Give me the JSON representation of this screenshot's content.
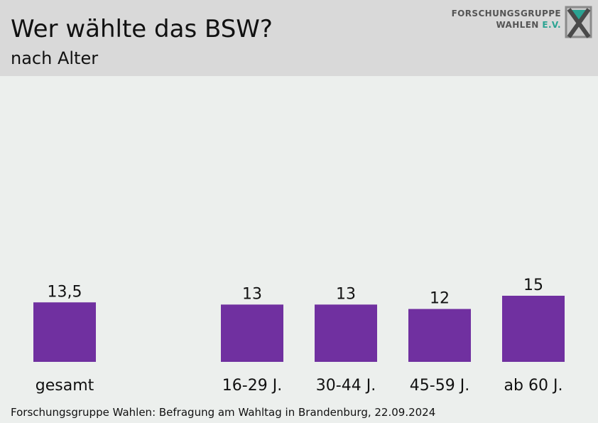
{
  "header": {
    "title": "Wer wählte das BSW?",
    "subtitle": "nach Alter",
    "logo_line1": "FORSCHUNGSGRUPPE",
    "logo_line2": "WAHLEN",
    "logo_ev": "E.V."
  },
  "chart_data": {
    "type": "bar",
    "categories": [
      "gesamt",
      "16-29 J.",
      "30-44 J.",
      "45-59 J.",
      "ab 60 J."
    ],
    "values": [
      13.5,
      13,
      13,
      12,
      15
    ],
    "value_labels": [
      "13,5",
      "13",
      "13",
      "12",
      "15"
    ],
    "title": "Wer wählte das BSW?",
    "subtitle": "nach Alter",
    "xlabel": "",
    "ylabel": "",
    "grid": false,
    "legend": "none",
    "bar_color": "#7030a0"
  },
  "footer": {
    "source": "Forschungsgruppe Wahlen: Befragung am Wahltag in Brandenburg, 22.09.2024"
  },
  "colors": {
    "bar": "#7030a0",
    "header_bg": "#d9d9d9",
    "plot_bg": "#ecefed",
    "logo_accent": "#2aa392"
  }
}
